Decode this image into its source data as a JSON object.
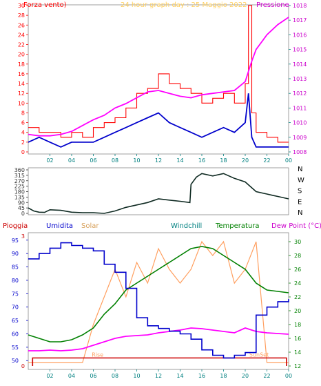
{
  "title": "24 hour graph day : 25 Maggio 2022",
  "panel1": {
    "left_label": "Forza vento)",
    "right_label": "Pressione",
    "left_ticks": [
      "0",
      "2",
      "4",
      "6",
      "8",
      "10",
      "12",
      "14",
      "16",
      "18",
      "20",
      "22",
      "24",
      "26",
      "28",
      "30"
    ],
    "right_ticks": [
      "1008",
      "1009",
      "1010",
      "1011",
      "1012",
      "1013",
      "1014",
      "1015",
      "1016",
      "1017",
      "1018"
    ],
    "x_ticks": [
      "02",
      "04",
      "06",
      "08",
      "10",
      "12",
      "14",
      "16",
      "18",
      "20",
      "22",
      "00"
    ]
  },
  "panel2": {
    "left_ticks": [
      "0",
      "45",
      "90",
      "135",
      "180",
      "225",
      "270",
      "315",
      "360"
    ],
    "dir_letters": [
      "N",
      "W",
      "S",
      "E",
      "N"
    ]
  },
  "panel3": {
    "labels": [
      "Pioggia",
      "Umidita",
      "Solar",
      "Windchill",
      "Temperatura",
      "Dew Point (°C)"
    ],
    "left_ticks": [
      "50",
      "55",
      "60",
      "65",
      "70",
      "75",
      "80",
      "85",
      "90",
      "95"
    ],
    "right_ticks": [
      "12",
      "14",
      "16",
      "18",
      "20",
      "22",
      "24",
      "26",
      "28",
      "30"
    ],
    "top_left_tick": "3",
    "zero_tick": "0",
    "rise": "Rise",
    "sunset": "SunSet",
    "x_ticks": [
      "02",
      "04",
      "06",
      "08",
      "10",
      "12",
      "14",
      "16",
      "18",
      "20",
      "22",
      "00"
    ]
  },
  "colors": {
    "wind": "#ff0000",
    "avg": "#0000cc",
    "pressure": "#ff00ff",
    "dir": "#0f2a22",
    "temp": "#008000",
    "solar": "#ff9f5f",
    "rain": "#cc0000",
    "hum": "#0000cc",
    "dew": "#ff00ff",
    "axis": "#008080"
  },
  "chart_data": [
    {
      "type": "line",
      "title": "24 hour graph day : 25 Maggio 2022",
      "x_hours": [
        0,
        1,
        2,
        3,
        4,
        5,
        6,
        7,
        8,
        9,
        10,
        11,
        12,
        13,
        14,
        15,
        16,
        17,
        18,
        19,
        20,
        20.3,
        20.6,
        21,
        22,
        23,
        24
      ],
      "series": [
        {
          "name": "Forza vento)",
          "axis": "left",
          "values": [
            5,
            4,
            4,
            3,
            4,
            3,
            5,
            6,
            7,
            9,
            12,
            13,
            16,
            14,
            13,
            12,
            10,
            11,
            12,
            10,
            14,
            30,
            8,
            4,
            3,
            2,
            2
          ]
        },
        {
          "name": "avg",
          "axis": "left",
          "values": [
            2,
            3,
            2,
            1,
            2,
            2,
            2,
            3,
            4,
            5,
            6,
            7,
            8,
            6,
            5,
            4,
            3,
            4,
            5,
            4,
            6,
            12,
            3,
            1,
            1,
            1,
            1
          ]
        },
        {
          "name": "Pressione",
          "axis": "right",
          "values": [
            1009.2,
            1009.1,
            1009.1,
            1009.2,
            1009.4,
            1009.8,
            1010.2,
            1010.5,
            1011.0,
            1011.3,
            1011.7,
            1012.1,
            1012.2,
            1012.0,
            1011.8,
            1011.7,
            1011.9,
            1012.0,
            1012.1,
            1012.2,
            1012.8,
            1013.5,
            1014.2,
            1015.0,
            1016.0,
            1016.7,
            1017.2
          ]
        }
      ],
      "ylim_left": [
        0,
        30
      ],
      "ylim_right": [
        1008,
        1018
      ]
    },
    {
      "type": "line",
      "x_hours": [
        0,
        0.5,
        1,
        1.5,
        2,
        3,
        4,
        5,
        6,
        7,
        8,
        9,
        10,
        11,
        12,
        13,
        14,
        14.9,
        15,
        15.5,
        16,
        17,
        18,
        19,
        20,
        21,
        22,
        22.5,
        23,
        24
      ],
      "series": [
        {
          "name": "direction",
          "values": [
            45,
            20,
            10,
            8,
            30,
            25,
            10,
            5,
            5,
            0,
            20,
            50,
            70,
            90,
            120,
            110,
            100,
            90,
            240,
            300,
            330,
            310,
            330,
            290,
            260,
            180,
            160,
            150,
            140,
            120
          ]
        }
      ],
      "ylim": [
        0,
        360
      ]
    },
    {
      "type": "line",
      "x_hours": [
        0,
        1,
        2,
        3,
        4,
        5,
        6,
        7,
        8,
        9,
        10,
        11,
        12,
        13,
        14,
        15,
        16,
        17,
        18,
        19,
        20,
        21,
        22,
        23,
        24
      ],
      "series": [
        {
          "name": "Umidita",
          "axis": "left",
          "values": [
            88,
            90,
            92,
            94,
            93,
            92,
            91,
            86,
            83,
            77,
            66,
            63,
            62,
            61,
            60,
            58,
            54,
            52,
            51,
            52,
            53,
            67,
            70,
            72,
            73
          ]
        },
        {
          "name": "Temperatura",
          "axis": "right",
          "values": [
            16.5,
            16,
            15.5,
            15.5,
            15.8,
            16.5,
            17.5,
            19.5,
            21,
            23,
            24,
            25,
            26,
            27,
            28,
            29,
            29.3,
            29,
            28,
            27,
            26,
            24,
            23,
            22.8,
            22.6
          ]
        },
        {
          "name": "Dew Point (°C)",
          "axis": "right",
          "values": [
            14.2,
            14.2,
            14.3,
            14.2,
            14.3,
            14.5,
            15,
            15.5,
            16,
            16.3,
            16.4,
            16.5,
            16.8,
            17,
            17.2,
            17.5,
            17.4,
            17.2,
            17,
            16.8,
            17.5,
            17,
            16.8,
            16.7,
            16.6
          ]
        },
        {
          "name": "Solar",
          "axis": "right",
          "values": [
            12.5,
            12.5,
            12.5,
            12.5,
            12.5,
            12.5,
            18,
            22,
            26,
            22,
            27,
            24,
            29,
            26,
            24,
            26,
            30,
            28,
            30,
            24,
            26,
            30,
            12.5,
            12.5,
            12.5
          ]
        },
        {
          "name": "Pioggia",
          "axis": "left",
          "values": [
            0,
            0,
            0,
            0,
            0,
            0,
            0,
            0,
            0,
            0,
            0,
            0,
            0,
            0,
            0,
            0,
            0,
            0,
            0,
            0,
            0,
            0,
            0,
            0,
            0
          ]
        }
      ],
      "ylim_left": [
        48,
        97
      ],
      "ylim_right": [
        12,
        31
      ],
      "sunrise_hour": 5.6,
      "sunset_hour": 20.5
    }
  ]
}
